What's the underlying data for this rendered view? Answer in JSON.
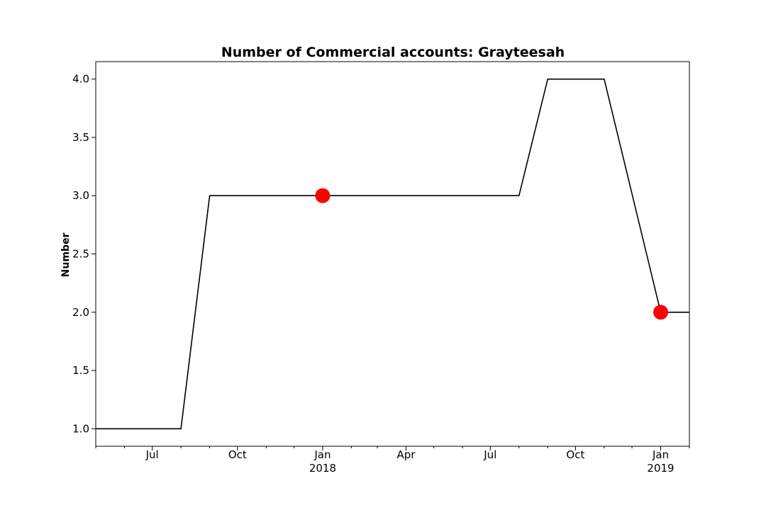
{
  "chart_data": {
    "type": "line",
    "title": "Number of Commercial accounts: Grayteesah",
    "xlabel": "",
    "ylabel": "Number",
    "x_range": [
      "2017-05-01",
      "2019-02-01"
    ],
    "ylim": [
      0.85,
      4.15
    ],
    "grid": false,
    "series": [
      {
        "color": "#000000",
        "points": [
          {
            "x": "2017-05-01",
            "y": 1.0
          },
          {
            "x": "2017-08-01",
            "y": 1.0
          },
          {
            "x": "2017-09-01",
            "y": 3.0
          },
          {
            "x": "2018-01-01",
            "y": 3.0
          },
          {
            "x": "2018-08-01",
            "y": 3.0
          },
          {
            "x": "2018-09-01",
            "y": 4.0
          },
          {
            "x": "2018-11-01",
            "y": 4.0
          },
          {
            "x": "2019-01-01",
            "y": 2.0
          },
          {
            "x": "2019-02-01",
            "y": 2.0
          }
        ]
      }
    ],
    "highlight_points": {
      "color": "#ff0000",
      "points": [
        {
          "x": "2018-01-01",
          "y": 3.0
        },
        {
          "x": "2019-01-01",
          "y": 2.0
        }
      ]
    },
    "y_ticks": [
      {
        "value": 1.0,
        "label": "1.0"
      },
      {
        "value": 1.5,
        "label": "1.5"
      },
      {
        "value": 2.0,
        "label": "2.0"
      },
      {
        "value": 2.5,
        "label": "2.5"
      },
      {
        "value": 3.0,
        "label": "3.0"
      },
      {
        "value": 3.5,
        "label": "3.5"
      },
      {
        "value": 4.0,
        "label": "4.0"
      }
    ],
    "x_ticks_major": [
      {
        "date": "2017-07-01",
        "label": "Jul",
        "sublabel": ""
      },
      {
        "date": "2017-10-01",
        "label": "Oct",
        "sublabel": ""
      },
      {
        "date": "2018-01-01",
        "label": "Jan",
        "sublabel": "2018"
      },
      {
        "date": "2018-04-01",
        "label": "Apr",
        "sublabel": ""
      },
      {
        "date": "2018-07-01",
        "label": "Jul",
        "sublabel": ""
      },
      {
        "date": "2018-10-01",
        "label": "Oct",
        "sublabel": ""
      },
      {
        "date": "2019-01-01",
        "label": "Jan",
        "sublabel": "2019"
      }
    ],
    "x_ticks_minor": [
      "2017-05-01",
      "2017-06-01",
      "2017-08-01",
      "2017-09-01",
      "2017-11-01",
      "2017-12-01",
      "2018-02-01",
      "2018-03-01",
      "2018-05-01",
      "2018-06-01",
      "2018-08-01",
      "2018-09-01",
      "2018-11-01",
      "2018-12-01",
      "2019-02-01"
    ]
  }
}
